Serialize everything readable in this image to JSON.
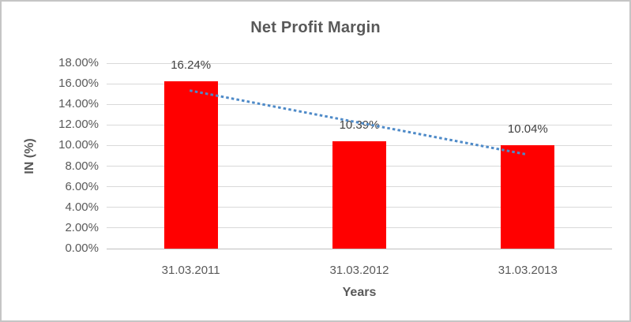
{
  "frame": {
    "border_color": "#c5c5c5",
    "background": "#ffffff"
  },
  "chart_data": {
    "type": "bar",
    "title": "Net Profit Margin",
    "xlabel": "Years",
    "ylabel": "IN (%)",
    "categories": [
      "31.03.2011",
      "31.03.2012",
      "31.03.2013"
    ],
    "values": [
      16.24,
      10.39,
      10.04
    ],
    "data_labels": [
      "16.24%",
      "10.39%",
      "10.04%"
    ],
    "ylim": [
      0,
      18
    ],
    "ytick_values": [
      0,
      2,
      4,
      6,
      8,
      10,
      12,
      14,
      16,
      18
    ],
    "ytick_labels": [
      "0.00%",
      "2.00%",
      "4.00%",
      "6.00%",
      "8.00%",
      "10.00%",
      "12.00%",
      "14.00%",
      "16.00%",
      "18.00%"
    ],
    "grid": true,
    "legend": "none",
    "trendline": {
      "type": "linear",
      "style": "dotted",
      "color": "#4e8ac8",
      "fitted_values": [
        15.32,
        12.22,
        9.12
      ]
    },
    "colors": {
      "bar": "#ff0000",
      "gridline": "#d9d9d9",
      "axis_line": "#bfbfbf",
      "title_text": "#595959",
      "tick_text": "#595959",
      "axis_title_text": "#595959",
      "data_label_text": "#404040"
    }
  }
}
